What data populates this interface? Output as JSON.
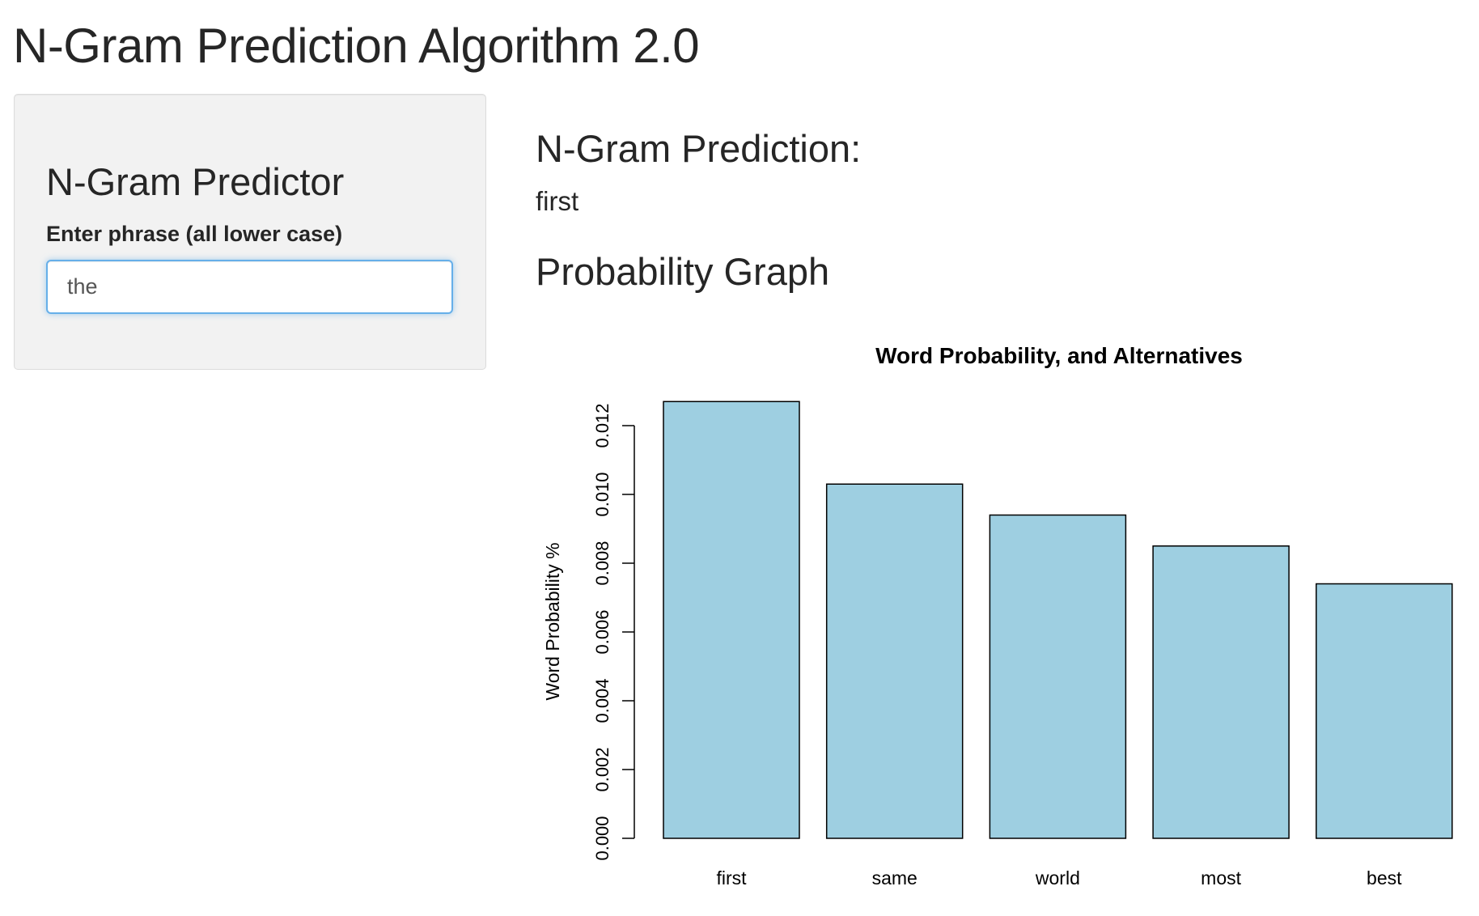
{
  "page": {
    "title": "N-Gram Prediction Algorithm 2.0"
  },
  "sidebar": {
    "heading": "N-Gram Predictor",
    "input_label": "Enter phrase (all lower case)",
    "input_value": "the"
  },
  "main": {
    "prediction_heading": "N-Gram Prediction:",
    "prediction_value": "first",
    "graph_heading": "Probability Graph"
  },
  "colors": {
    "bar_fill": "#9ecfe1",
    "bar_stroke": "#000000",
    "input_focus": "#66afe9"
  },
  "chart_data": {
    "type": "bar",
    "title": "Word Probability, and Alternatives",
    "xlabel": "",
    "ylabel": "Word Probability %",
    "categories": [
      "first",
      "same",
      "world",
      "most",
      "best"
    ],
    "values": [
      0.0127,
      0.0103,
      0.0094,
      0.0085,
      0.0074
    ],
    "ylim": [
      0,
      0.012
    ],
    "yticks": [
      "0.000",
      "0.002",
      "0.004",
      "0.006",
      "0.008",
      "0.010",
      "0.012"
    ],
    "grid": false,
    "legend": "none"
  }
}
